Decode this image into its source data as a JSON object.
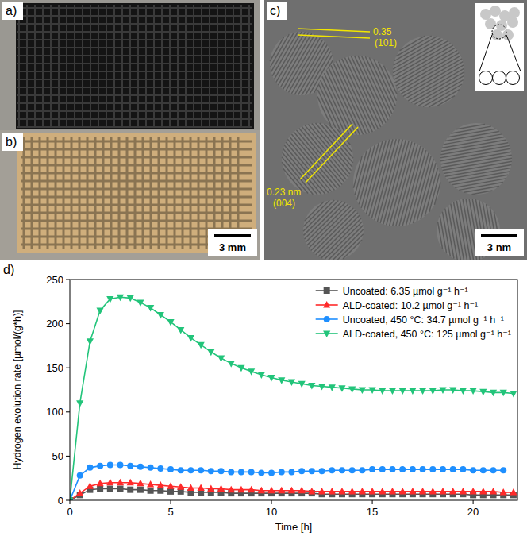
{
  "panels": [
    {
      "label": "a)"
    },
    {
      "label": "b)",
      "scale_bar": "3 mm"
    },
    {
      "label": "c)",
      "scale_bar": "3 nm",
      "annotations": [
        {
          "text": "0.35"
        },
        {
          "text": "(101)"
        },
        {
          "text": "0.23 nm"
        },
        {
          "text": "(004)"
        }
      ]
    },
    {
      "label": "d)"
    }
  ],
  "chart_data": {
    "type": "line",
    "x_label": "Time [h]",
    "y_label": "Hydrogen evolution rate [µmol/(g*h)]",
    "xlim": [
      0,
      22.2
    ],
    "ylim": [
      0,
      250
    ],
    "xticks": [
      0,
      5,
      10,
      15,
      20
    ],
    "yticks": [
      0,
      50,
      100,
      150,
      200,
      250
    ],
    "grid": false,
    "legend": "top-right",
    "x": [
      0,
      0.5,
      1,
      1.5,
      2,
      2.5,
      3,
      3.5,
      4,
      4.5,
      5,
      5.5,
      6,
      6.5,
      7,
      7.5,
      8,
      8.5,
      9,
      9.5,
      10,
      10.5,
      11,
      11.5,
      12,
      12.5,
      13,
      13.5,
      14,
      14.5,
      15,
      15.5,
      16,
      16.5,
      17,
      17.5,
      18,
      18.5,
      19,
      19.5,
      20,
      20.5,
      21,
      21.5,
      22
    ],
    "series": [
      {
        "name": "Uncoated: 6.35 µmol g⁻¹ h⁻¹",
        "color": "#555555",
        "marker": "square",
        "values": [
          0,
          6,
          12,
          13,
          13,
          13,
          12,
          12,
          11,
          11,
          10,
          10,
          9,
          9,
          9,
          9,
          8,
          8,
          8,
          8,
          8,
          8,
          8,
          8,
          8,
          7,
          7,
          7,
          7,
          7,
          7,
          7,
          7,
          7,
          7,
          7,
          7,
          7,
          7,
          7,
          6,
          6,
          6,
          6,
          6
        ]
      },
      {
        "name": "ALD-coated: 10.2 µmol g⁻¹ h⁻¹",
        "color": "#ff2a2a",
        "marker": "triangle-up",
        "values": [
          0,
          8,
          16,
          19,
          20,
          20,
          20,
          19,
          18,
          17,
          16,
          15,
          14,
          14,
          13,
          13,
          12,
          12,
          12,
          11,
          11,
          11,
          11,
          11,
          10,
          10,
          10,
          10,
          10,
          10,
          10,
          10,
          10,
          10,
          10,
          10,
          10,
          10,
          10,
          10,
          10,
          10,
          10,
          9,
          9
        ]
      },
      {
        "name": "Uncoated, 450 °C: 34.7 µmol g⁻¹ h⁻¹",
        "color": "#1e8fff",
        "marker": "circle",
        "values": [
          0,
          28,
          37,
          39,
          40,
          40,
          39,
          38,
          37,
          36,
          35,
          34,
          34,
          34,
          33,
          33,
          32,
          32,
          32,
          31,
          31,
          32,
          32,
          33,
          33,
          33,
          34,
          34,
          34,
          34,
          35,
          35,
          35,
          35,
          35,
          35,
          35,
          35,
          35,
          35,
          34,
          34,
          34,
          34,
          null
        ]
      },
      {
        "name": "ALD-coated, 450 °C: 125 µmol g⁻¹ h⁻¹",
        "color": "#22c47a",
        "marker": "triangle-down",
        "values": [
          0,
          110,
          180,
          215,
          228,
          230,
          229,
          224,
          218,
          210,
          202,
          193,
          184,
          176,
          168,
          161,
          155,
          150,
          146,
          142,
          139,
          136,
          134,
          132,
          130,
          129,
          128,
          127,
          126,
          125,
          125,
          124,
          124,
          124,
          124,
          124,
          124,
          125,
          125,
          124,
          124,
          123,
          122,
          122,
          121
        ]
      }
    ]
  }
}
